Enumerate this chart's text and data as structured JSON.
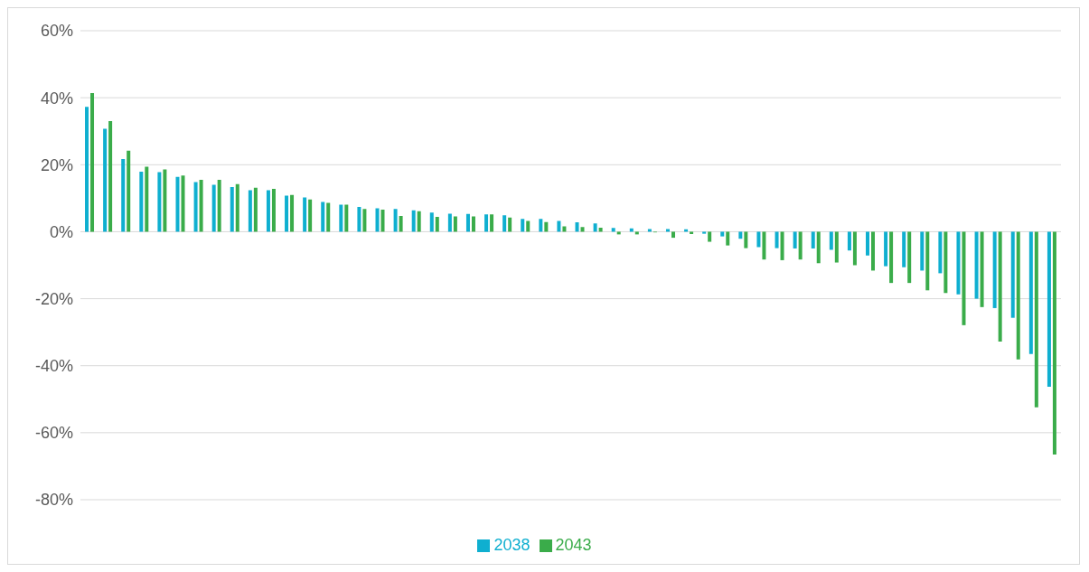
{
  "chart_data": {
    "type": "bar",
    "categories": [
      null,
      null,
      null,
      null,
      null,
      null,
      null,
      null,
      null,
      null,
      null,
      null,
      null,
      null,
      null,
      null,
      null,
      null,
      null,
      null,
      null,
      null,
      null,
      null,
      null,
      null,
      null,
      null,
      null,
      null,
      null,
      null,
      null,
      null,
      null,
      null,
      null,
      null,
      null,
      null,
      null,
      null,
      null,
      null,
      null,
      null,
      null,
      null,
      null,
      null,
      null,
      null,
      null,
      null
    ],
    "series": [
      {
        "name": "2038",
        "color": "#0fafd0",
        "values": [
          37.3,
          30.7,
          21.7,
          17.9,
          17.8,
          16.4,
          14.8,
          14.0,
          13.3,
          12.4,
          12.4,
          10.8,
          10.2,
          8.9,
          8.1,
          7.4,
          7.0,
          6.8,
          6.4,
          5.7,
          5.4,
          5.3,
          5.2,
          4.9,
          3.8,
          3.8,
          3.2,
          2.8,
          2.5,
          1.1,
          1.0,
          0.8,
          0.8,
          0.7,
          -0.6,
          -1.4,
          -2.1,
          -4.6,
          -4.9,
          -5.0,
          -5.0,
          -5.4,
          -5.6,
          -7.1,
          -10.3,
          -10.6,
          -11.6,
          -12.4,
          -18.7,
          -20.0,
          -22.8,
          -25.7,
          -36.5,
          -46.3
        ]
      },
      {
        "name": "2043",
        "color": "#3aac4a",
        "values": [
          41.4,
          33.0,
          24.2,
          19.4,
          18.6,
          16.8,
          15.5,
          15.5,
          14.2,
          13.1,
          12.8,
          11.0,
          9.6,
          8.6,
          8.1,
          6.8,
          6.6,
          4.7,
          6.1,
          4.4,
          4.6,
          4.6,
          5.2,
          4.2,
          3.2,
          2.9,
          1.6,
          1.4,
          1.2,
          -0.8,
          -0.8,
          -0.2,
          -1.8,
          -0.7,
          -3.0,
          -4.1,
          -4.9,
          -8.3,
          -8.5,
          -8.3,
          -9.4,
          -9.2,
          -10.0,
          -11.6,
          -15.3,
          -15.3,
          -17.5,
          -18.3,
          -27.9,
          -22.5,
          -32.8,
          -38.1,
          -52.4,
          -66.5
        ]
      }
    ],
    "ylim": [
      -80,
      60
    ],
    "yticks": [
      {
        "value": -80,
        "label": "-80%"
      },
      {
        "value": -60,
        "label": "-60%"
      },
      {
        "value": -40,
        "label": "-40%"
      },
      {
        "value": -20,
        "label": "-20%"
      },
      {
        "value": 0,
        "label": "0%"
      },
      {
        "value": 20,
        "label": "20%"
      },
      {
        "value": 40,
        "label": "40%"
      },
      {
        "value": 60,
        "label": "60%"
      }
    ],
    "grid": "y",
    "legend": "bottom",
    "tick_labels": "y"
  }
}
